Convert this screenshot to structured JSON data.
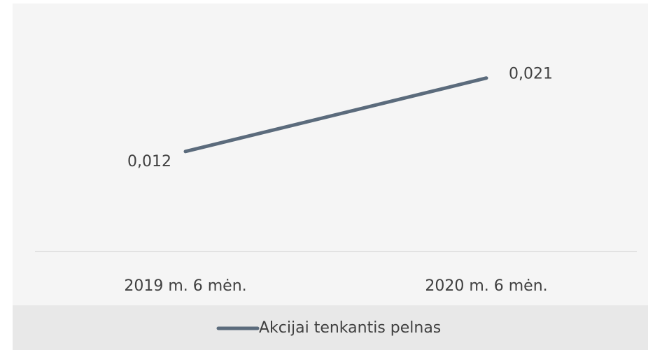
{
  "chart_data": {
    "type": "line",
    "categories": [
      "2019 m. 6 mėn.",
      "2020 m. 6 mėn."
    ],
    "series": [
      {
        "name": "Akcijai tenkantis pelnas",
        "color": "#5b6b7c",
        "values": [
          0.012,
          0.021
        ],
        "value_labels": [
          "0,012",
          "0,021"
        ]
      }
    ],
    "ylim": [
      0,
      0.025
    ],
    "legend": "bottom"
  }
}
